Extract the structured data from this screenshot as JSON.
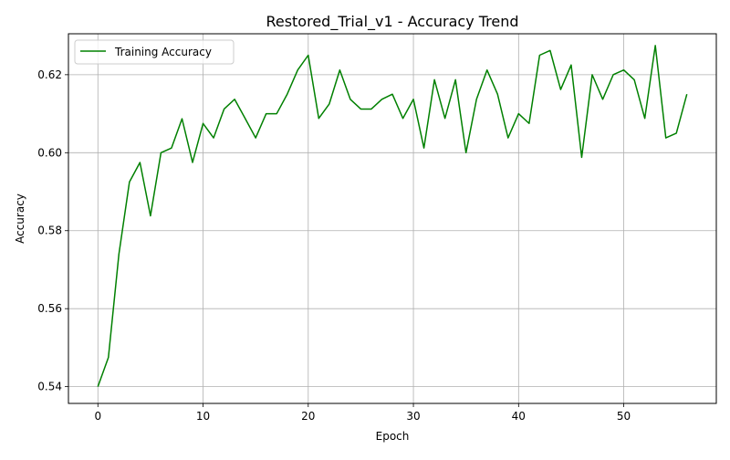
{
  "chart_data": {
    "type": "line",
    "title": "Restored_Trial_v1 - Accuracy Trend",
    "xlabel": "Epoch",
    "ylabel": "Accuracy",
    "xlim": [
      -2.8,
      58.8
    ],
    "ylim": [
      0.5357,
      0.6305
    ],
    "xticks": [
      0,
      10,
      20,
      30,
      40,
      50
    ],
    "xtick_labels": [
      "0",
      "10",
      "20",
      "30",
      "40",
      "50"
    ],
    "yticks": [
      0.54,
      0.56,
      0.58,
      0.6,
      0.62
    ],
    "ytick_labels": [
      "0.54",
      "0.56",
      "0.58",
      "0.60",
      "0.62"
    ],
    "grid": true,
    "legend": "upper-left",
    "color": "#008000",
    "series": [
      {
        "name": "Training Accuracy",
        "x": [
          0,
          1,
          2,
          3,
          4,
          5,
          6,
          7,
          8,
          9,
          10,
          11,
          12,
          13,
          14,
          15,
          16,
          17,
          18,
          19,
          20,
          21,
          22,
          23,
          24,
          25,
          26,
          27,
          28,
          29,
          30,
          31,
          32,
          33,
          34,
          35,
          36,
          37,
          38,
          39,
          40,
          41,
          42,
          43,
          44,
          45,
          46,
          47,
          48,
          49,
          50,
          51,
          52,
          53,
          54,
          55,
          56
        ],
        "y": [
          0.54,
          0.5475,
          0.574,
          0.5925,
          0.5975,
          0.5838,
          0.6,
          0.6012,
          0.6087,
          0.5975,
          0.6075,
          0.6038,
          0.6112,
          0.6137,
          0.6088,
          0.6038,
          0.61,
          0.61,
          0.615,
          0.6212,
          0.625,
          0.6088,
          0.6125,
          0.6212,
          0.6137,
          0.6112,
          0.6112,
          0.6137,
          0.615,
          0.6088,
          0.6137,
          0.6012,
          0.6187,
          0.6088,
          0.6187,
          0.6,
          0.6137,
          0.6212,
          0.615,
          0.6038,
          0.61,
          0.6075,
          0.625,
          0.6262,
          0.6162,
          0.6225,
          0.5988,
          0.62,
          0.6137,
          0.62,
          0.6212,
          0.6187,
          0.6088,
          0.6275,
          0.6038,
          0.605,
          0.615
        ]
      }
    ]
  }
}
